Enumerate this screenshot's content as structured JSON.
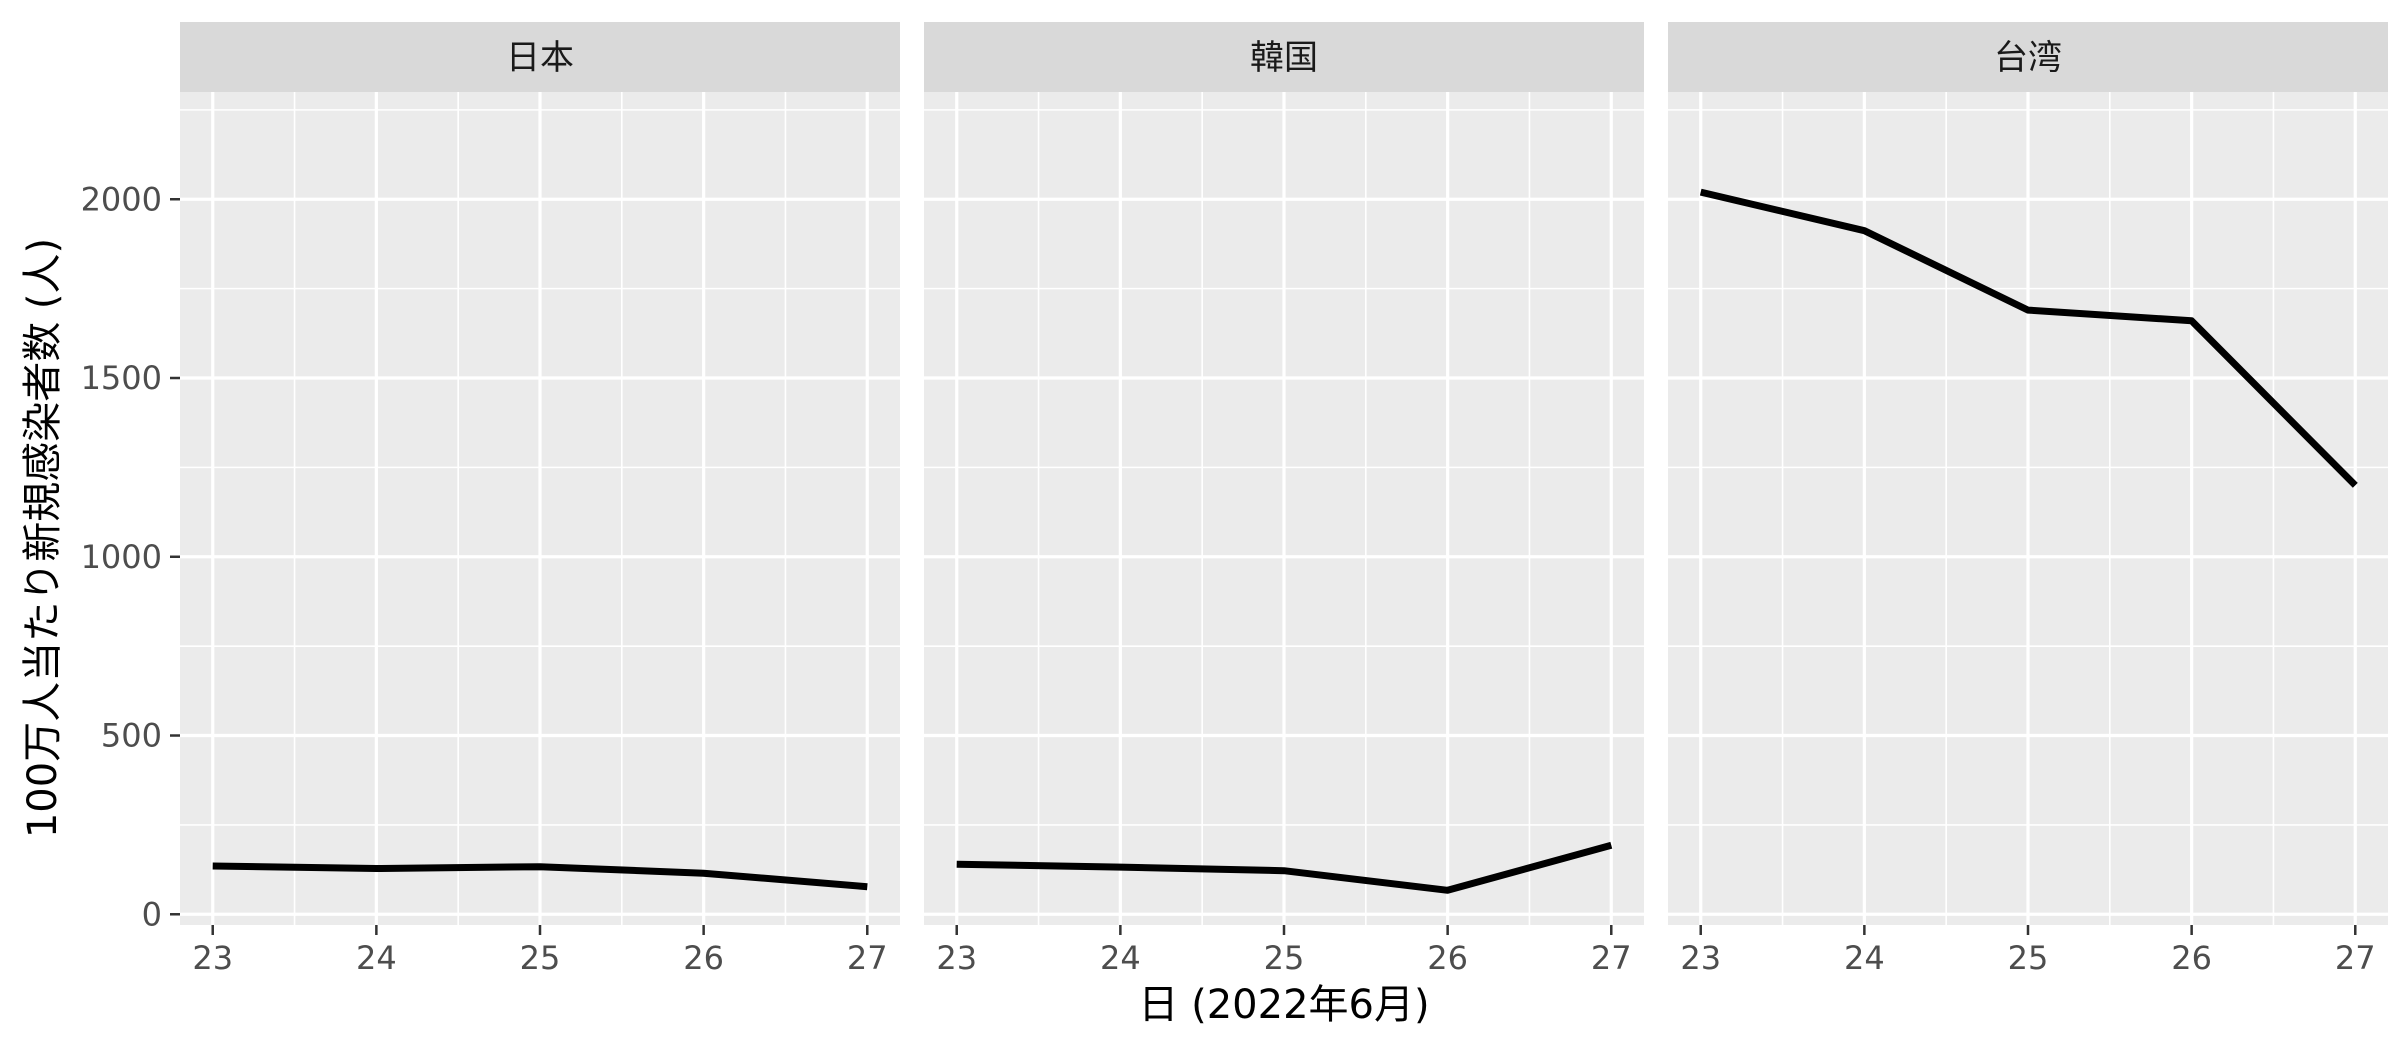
{
  "chart_data": {
    "type": "line",
    "xlabel": "日 (2022年6月)",
    "ylabel": "100万人当たり新規感染者数 (人)",
    "x": [
      23,
      24,
      25,
      26,
      27
    ],
    "xlim": [
      22.8,
      27.2
    ],
    "ylim": [
      -30,
      2300
    ],
    "y_ticks": [
      0,
      500,
      1000,
      1500,
      2000
    ],
    "grid": true,
    "line_color": "#000000",
    "panel_background": "#ebebeb",
    "strip_background": "#d9d9d9",
    "panels": [
      {
        "name": "日本",
        "values": [
          135,
          128,
          133,
          115,
          77
        ]
      },
      {
        "name": "韓国",
        "values": [
          140,
          132,
          122,
          67,
          193
        ]
      },
      {
        "name": "台湾",
        "values": [
          2020,
          1912,
          1690,
          1660,
          1200
        ]
      }
    ]
  }
}
